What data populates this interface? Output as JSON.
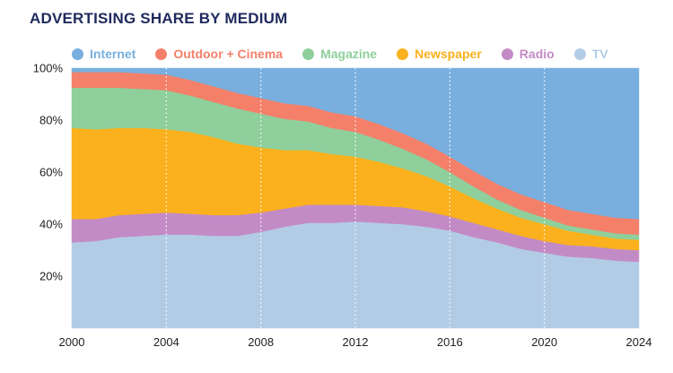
{
  "chart_data": {
    "type": "area",
    "stacked": true,
    "normalized": true,
    "title": "ADVERTISING SHARE BY MEDIUM",
    "xlabel": "",
    "ylabel": "",
    "x": [
      2000,
      2001,
      2002,
      2003,
      2004,
      2005,
      2006,
      2007,
      2008,
      2009,
      2010,
      2011,
      2012,
      2013,
      2014,
      2015,
      2016,
      2017,
      2018,
      2019,
      2020,
      2021,
      2022,
      2023,
      2024
    ],
    "xlim": [
      2000,
      2024
    ],
    "xticks": [
      2000,
      2004,
      2008,
      2012,
      2016,
      2020,
      2024
    ],
    "xtick_labels": [
      "2000",
      "2004",
      "2008",
      "2012",
      "2016",
      "2020",
      "2024"
    ],
    "ylim": [
      0,
      100
    ],
    "yticks": [
      20,
      40,
      60,
      80,
      100
    ],
    "ytick_labels": [
      "20%",
      "40%",
      "60%",
      "80%",
      "100%"
    ],
    "grid": "vertical dotted",
    "legend_position": "top",
    "series": [
      {
        "name": "TV",
        "color": "#b3cce6",
        "values": [
          33,
          33.5,
          35,
          35.5,
          36,
          36,
          35.5,
          35.5,
          37,
          39,
          40.5,
          40.5,
          41,
          40.5,
          40,
          39,
          37.5,
          35,
          33,
          30.5,
          29,
          27.5,
          27,
          26,
          25.5
        ]
      },
      {
        "name": "Radio",
        "color": "#c38bc5",
        "values": [
          9,
          8.5,
          8.5,
          8.5,
          8.5,
          8,
          8,
          8,
          7.5,
          7,
          7,
          7,
          6.5,
          6.5,
          6.5,
          6,
          5.5,
          5.5,
          5,
          5,
          4.5,
          4.5,
          4.5,
          4.5,
          4.5
        ]
      },
      {
        "name": "Newspaper",
        "color": "#fab11d",
        "values": [
          35,
          34.5,
          33.5,
          33,
          32,
          31.5,
          30,
          27.5,
          25,
          22.5,
          21,
          19.5,
          18.5,
          17,
          15,
          13.5,
          11.5,
          9.5,
          8,
          7,
          6.5,
          5.5,
          4.5,
          4,
          4
        ]
      },
      {
        "name": "Magazine",
        "color": "#8ecf9c",
        "values": [
          15.5,
          16,
          15.5,
          15,
          15,
          14,
          13.5,
          13.5,
          13,
          12,
          11,
          10,
          9.5,
          8.5,
          7.5,
          6.5,
          5.5,
          4.5,
          3.5,
          3,
          2.5,
          2,
          2,
          2,
          2
        ]
      },
      {
        "name": "Outdoor + Cinema",
        "color": "#f4806a",
        "values": [
          6,
          6,
          6,
          6,
          6,
          6,
          6,
          6,
          6,
          6,
          6,
          6,
          6,
          6,
          6,
          6,
          6,
          6,
          6,
          6,
          6,
          6,
          6,
          6,
          6
        ]
      },
      {
        "name": "Internet",
        "color": "#78afde",
        "values": [
          1.5,
          1.5,
          1.5,
          2,
          2.5,
          4.5,
          7,
          9.5,
          11.5,
          13.5,
          14.5,
          17,
          18.5,
          21.5,
          25,
          29,
          34,
          39.5,
          44.5,
          48.5,
          51.5,
          54.5,
          56,
          57.5,
          58
        ]
      }
    ],
    "legend_order": [
      "Internet",
      "Outdoor + Cinema",
      "Magazine",
      "Newspaper",
      "Radio",
      "TV"
    ]
  }
}
